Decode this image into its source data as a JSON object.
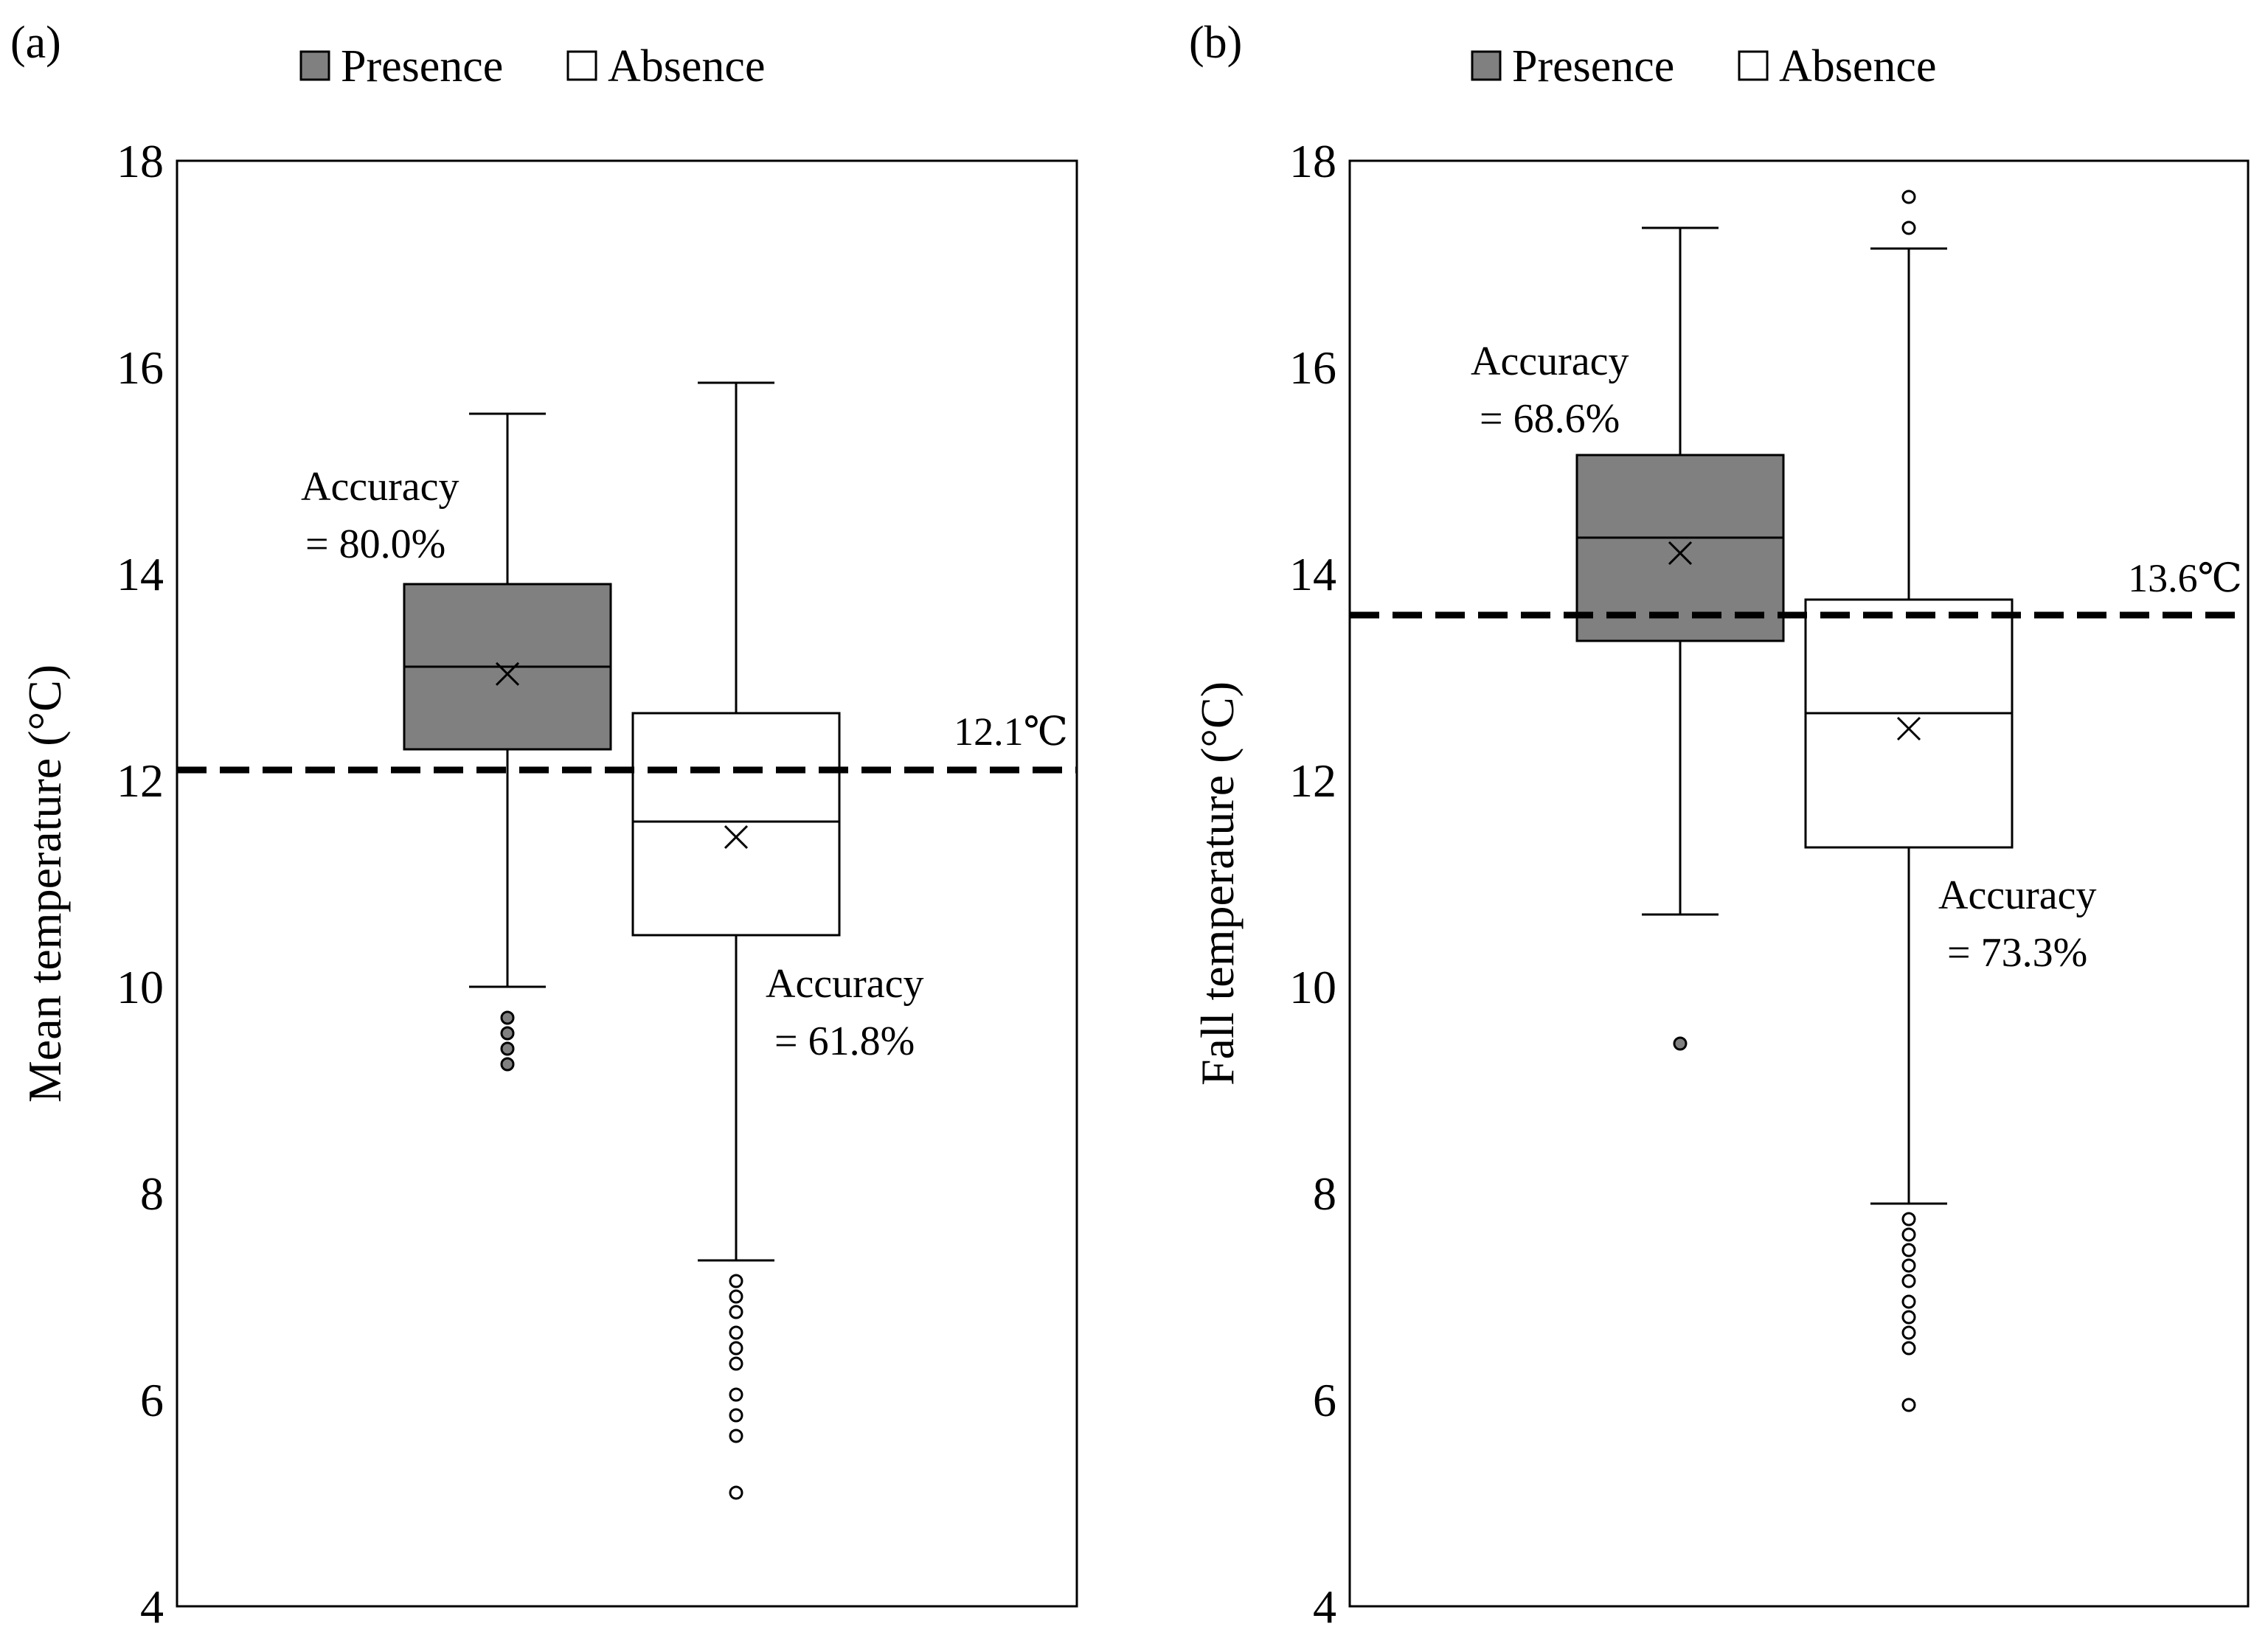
{
  "chart_data": [
    {
      "type": "box",
      "panel_label": "(a)",
      "ylabel": "Mean temperature (°C)",
      "xlabel": "",
      "ylim": [
        4,
        18
      ],
      "yticks": [
        4,
        6,
        8,
        10,
        12,
        14,
        16,
        18
      ],
      "legend": [
        "Presence",
        "Absence"
      ],
      "threshold": {
        "value": 12.1,
        "label": "12.1℃"
      },
      "series": [
        {
          "name": "Presence",
          "color": "#808080",
          "whisker_low": 10.0,
          "q1": 12.3,
          "median": 13.1,
          "q3": 13.9,
          "whisker_high": 15.55,
          "mean": 13.03,
          "outliers": [
            9.7,
            9.55,
            9.4,
            9.25
          ],
          "annotation": [
            "Accuracy",
            "= 80.0%"
          ]
        },
        {
          "name": "Absence",
          "color": "#ffffff",
          "whisker_low": 7.35,
          "q1": 10.5,
          "median": 11.6,
          "q3": 12.65,
          "whisker_high": 15.85,
          "mean": 11.45,
          "outliers": [
            7.15,
            7.0,
            6.85,
            6.65,
            6.5,
            6.35,
            6.05,
            5.85,
            5.65,
            5.1
          ],
          "annotation": [
            "Accuracy",
            "= 61.8%"
          ]
        }
      ]
    },
    {
      "type": "box",
      "panel_label": "(b)",
      "ylabel": "Fall temperature (°C)",
      "xlabel": "",
      "ylim": [
        4,
        18
      ],
      "yticks": [
        4,
        6,
        8,
        10,
        12,
        14,
        16,
        18
      ],
      "legend": [
        "Presence",
        "Absence"
      ],
      "threshold": {
        "value": 13.6,
        "label": "13.6℃"
      },
      "series": [
        {
          "name": "Presence",
          "color": "#808080",
          "whisker_low": 10.7,
          "q1": 13.35,
          "median": 14.35,
          "q3": 15.15,
          "whisker_high": 17.35,
          "mean": 14.2,
          "outliers": [
            9.45
          ],
          "annotation": [
            "Accuracy",
            "= 68.6%"
          ]
        },
        {
          "name": "Absence",
          "color": "#ffffff",
          "whisker_low": 7.9,
          "q1": 11.35,
          "median": 12.65,
          "q3": 13.75,
          "whisker_high": 17.15,
          "mean": 12.5,
          "outliers": [
            17.65,
            17.35,
            7.75,
            7.6,
            7.45,
            7.3,
            7.15,
            6.95,
            6.8,
            6.65,
            6.5,
            5.95
          ],
          "annotation": [
            "Accuracy",
            "= 73.3%"
          ]
        }
      ]
    }
  ]
}
